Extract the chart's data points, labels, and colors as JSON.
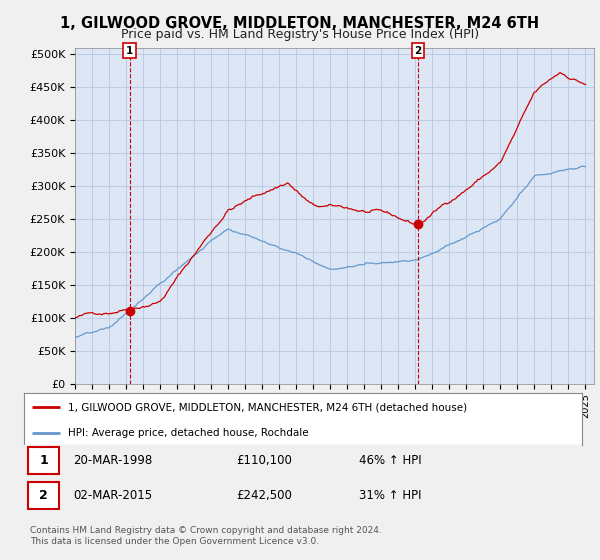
{
  "title": "1, GILWOOD GROVE, MIDDLETON, MANCHESTER, M24 6TH",
  "subtitle": "Price paid vs. HM Land Registry's House Price Index (HPI)",
  "title_fontsize": 10.5,
  "subtitle_fontsize": 9,
  "ylabel_ticks": [
    "£0",
    "£50K",
    "£100K",
    "£150K",
    "£200K",
    "£250K",
    "£300K",
    "£350K",
    "£400K",
    "£450K",
    "£500K"
  ],
  "ytick_values": [
    0,
    50000,
    100000,
    150000,
    200000,
    250000,
    300000,
    350000,
    400000,
    450000,
    500000
  ],
  "ylim": [
    0,
    510000
  ],
  "xlim_start": 1995.0,
  "xlim_end": 2025.5,
  "background_color": "#f0f0f0",
  "plot_bg_color": "#dce6f5",
  "grid_color": "#b8c8e0",
  "red_line_color": "#cc0000",
  "blue_line_color": "#6699cc",
  "sale1_x": 1998.21,
  "sale1_y": 110100,
  "sale1_label": "1",
  "sale1_date": "20-MAR-1998",
  "sale1_price": "£110,100",
  "sale1_hpi": "46% ↑ HPI",
  "sale2_x": 2015.17,
  "sale2_y": 242500,
  "sale2_label": "2",
  "sale2_date": "02-MAR-2015",
  "sale2_price": "£242,500",
  "sale2_hpi": "31% ↑ HPI",
  "legend_line1": "1, GILWOOD GROVE, MIDDLETON, MANCHESTER, M24 6TH (detached house)",
  "legend_line2": "HPI: Average price, detached house, Rochdale",
  "footnote": "Contains HM Land Registry data © Crown copyright and database right 2024.\nThis data is licensed under the Open Government Licence v3.0.",
  "xtick_years": [
    1995,
    1996,
    1997,
    1998,
    1999,
    2000,
    2001,
    2002,
    2003,
    2004,
    2005,
    2006,
    2007,
    2008,
    2009,
    2010,
    2011,
    2012,
    2013,
    2014,
    2015,
    2016,
    2017,
    2018,
    2019,
    2020,
    2021,
    2022,
    2023,
    2024,
    2025
  ]
}
